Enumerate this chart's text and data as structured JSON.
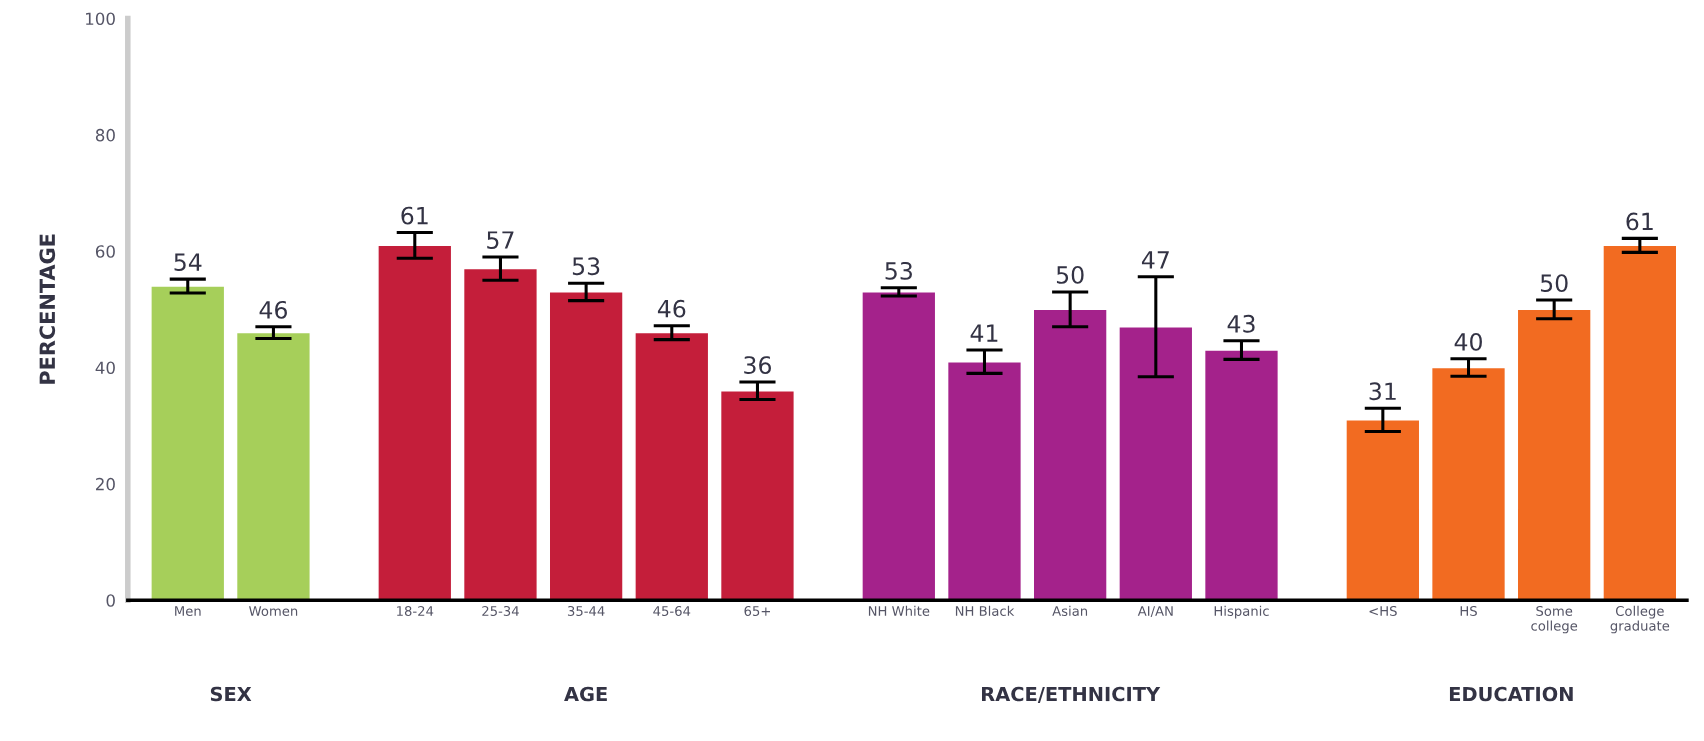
{
  "chart_data": {
    "type": "bar",
    "ylabel": "PERCENTAGE",
    "categories": [
      "Men",
      "Women",
      "18-24",
      "25-34",
      "35-44",
      "45-64",
      "65+",
      "NH White",
      "NH Black",
      "Asian",
      "AI/AN",
      "Hispanic",
      "<HS",
      "HS",
      "Some college",
      "College graduate"
    ],
    "values": [
      54,
      46,
      61,
      57,
      53,
      46,
      36,
      53,
      41,
      50,
      47,
      43,
      31,
      40,
      50,
      61
    ],
    "errors": [
      1.2,
      1,
      2.2,
      2,
      1.5,
      1.2,
      1.5,
      0.7,
      2,
      3,
      8.6,
      1.6,
      2,
      1.5,
      1.6,
      1.2
    ],
    "colors": [
      "#a6cf5a",
      "#a6cf5a",
      "#c41e3a",
      "#c41e3a",
      "#c41e3a",
      "#c41e3a",
      "#c41e3a",
      "#a4228b",
      "#a4228b",
      "#a4228b",
      "#a4228b",
      "#a4228b",
      "#f26b21",
      "#f26b21",
      "#f26b21",
      "#f26b21"
    ],
    "data_labels": true,
    "ylim": [
      0,
      100
    ],
    "yticks": [
      0,
      20,
      40,
      60,
      80,
      100
    ],
    "grid": false,
    "legend": false,
    "annotations": [
      "SEX",
      "AGE",
      "RACE/ETHNICITY",
      "EDUCATION"
    ]
  }
}
